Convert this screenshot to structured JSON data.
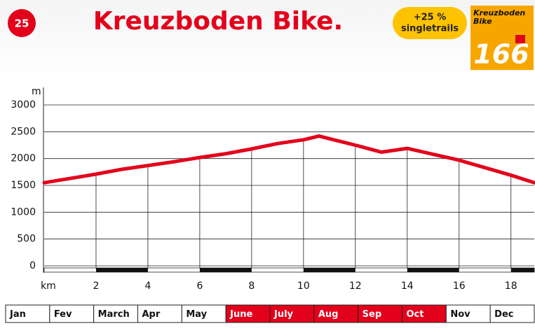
{
  "header": {
    "number": "25",
    "title": "Kreuzboden Bike.",
    "badge_line1": "+25 %",
    "badge_line2": "singletrails",
    "cover_title1": "Kreuzboden",
    "cover_title2": "Bike",
    "cover_number": "166"
  },
  "chart_data": {
    "type": "line",
    "ylabel": "m",
    "xlabel": "km",
    "x": [
      0,
      1,
      2,
      3,
      4,
      5,
      6,
      7,
      8,
      9,
      10,
      10.6,
      11,
      12,
      13,
      14,
      15,
      16,
      17,
      18,
      18.9
    ],
    "series": [
      {
        "color": "#e3001b",
        "values": [
          1550,
          1630,
          1710,
          1800,
          1870,
          1940,
          2020,
          2090,
          2180,
          2280,
          2350,
          2420,
          2370,
          2250,
          2120,
          2190,
          2080,
          1970,
          1830,
          1690,
          1550
        ]
      }
    ],
    "xlim": [
      0,
      18.9
    ],
    "ylim": [
      0,
      3000
    ],
    "xticks": [
      2,
      4,
      6,
      8,
      10,
      12,
      14,
      16,
      18
    ],
    "yticks": [
      0,
      500,
      1000,
      1500,
      2000,
      2500,
      3000
    ],
    "grid": true
  },
  "months": [
    {
      "label": "Jan",
      "active": false
    },
    {
      "label": "Fev",
      "active": false
    },
    {
      "label": "March",
      "active": false
    },
    {
      "label": "Apr",
      "active": false
    },
    {
      "label": "May",
      "active": false
    },
    {
      "label": "June",
      "active": true
    },
    {
      "label": "July",
      "active": true
    },
    {
      "label": "Aug",
      "active": true
    },
    {
      "label": "Sep",
      "active": true
    },
    {
      "label": "Oct",
      "active": true
    },
    {
      "label": "Nov",
      "active": false
    },
    {
      "label": "Dec",
      "active": false
    }
  ]
}
